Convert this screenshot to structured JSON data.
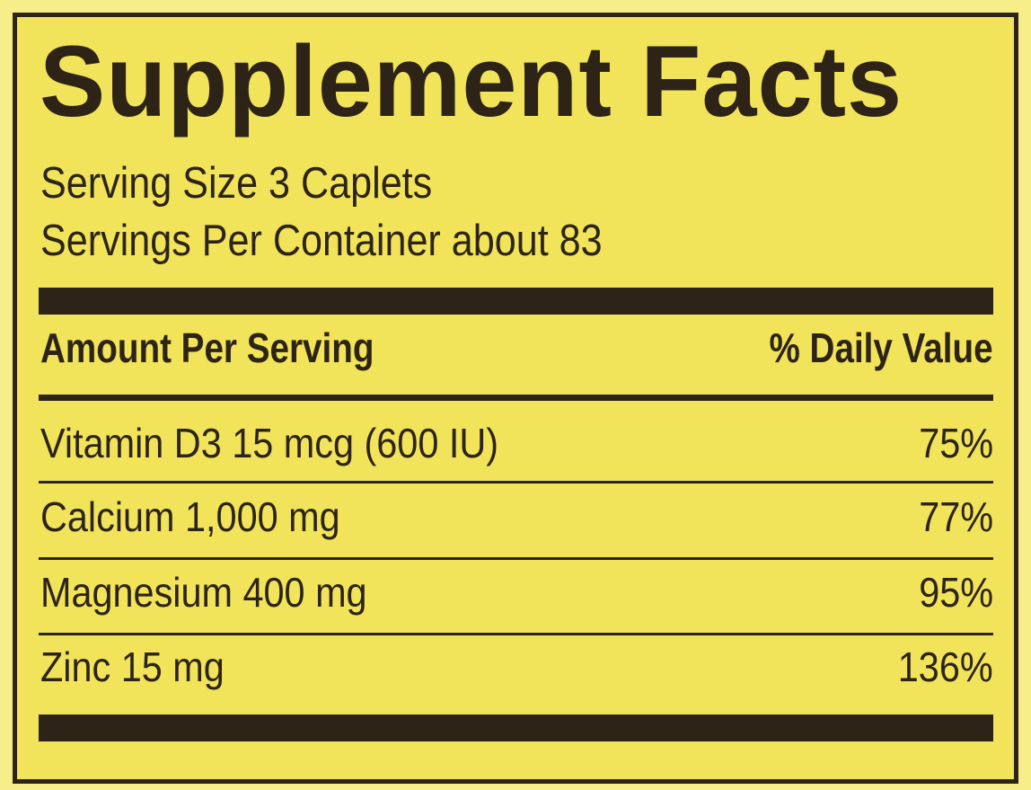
{
  "title": "Supplement Facts",
  "serving_size": "Serving Size 3 Caplets",
  "servings_per_container": "Servings Per Container about 83",
  "header": {
    "amount": "Amount Per Serving",
    "daily_value": "% Daily Value"
  },
  "rows": [
    {
      "nutrient": "Vitamin D3 15 mcg (600 IU)",
      "dv": "75%"
    },
    {
      "nutrient": "Calcium 1,000 mg",
      "dv": "77%"
    },
    {
      "nutrient": "Magnesium 400 mg",
      "dv": "95%"
    },
    {
      "nutrient": "Zinc 15 mg",
      "dv": "136%"
    }
  ],
  "colors": {
    "background": "#f1e45a",
    "ink": "#2d2417"
  }
}
